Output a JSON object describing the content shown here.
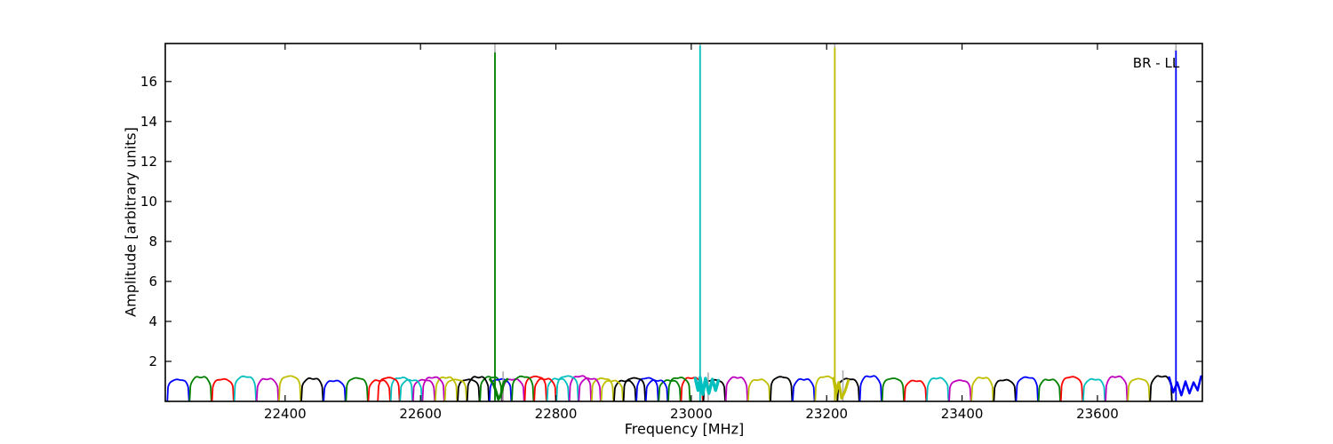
{
  "annotation": {
    "label": "BR - LL"
  },
  "axes": {
    "xlabel": "Frequency [MHz]",
    "ylabel": "Amplitude [arbitrary units]"
  },
  "chart_data": {
    "type": "line",
    "title": "",
    "annotation": "BR - LL",
    "xlabel": "Frequency [MHz]",
    "ylabel": "Amplitude [arbitrary units]",
    "xlim": [
      22223,
      23755
    ],
    "ylim": [
      0,
      17.9
    ],
    "xticks": [
      22400,
      22600,
      22800,
      23000,
      23200,
      23400,
      23600
    ],
    "yticks": [
      2,
      4,
      6,
      8,
      10,
      12,
      14,
      16
    ],
    "grid": false,
    "legend": "none",
    "background": "#ffffff",
    "color_cycle": {
      "b": "#0000ff",
      "g": "#008000",
      "r": "#ff0000",
      "c": "#00bfbf",
      "m": "#bf00bf",
      "y": "#bfbf00",
      "k": "#000000",
      "gray": "#a9a9a9"
    },
    "bandpass_amplitude_range": [
      1.08,
      1.34
    ],
    "subbands_main": {
      "f_start": 22226,
      "pitch_mhz": 33,
      "width_mhz": 32,
      "count": 46,
      "amp_seed": 3,
      "skip": [
        45
      ],
      "colors": [
        "b",
        "g",
        "r",
        "c",
        "m",
        "y",
        "k",
        "b",
        "g",
        "r",
        "c",
        "m",
        "y",
        "k",
        "g",
        "m",
        "r",
        "c",
        "m",
        "y",
        "k",
        "b",
        "g",
        "r",
        "k",
        "m",
        "y",
        "k",
        "b",
        "y",
        "k",
        "b",
        "g",
        "r",
        "c",
        "m",
        "y",
        "k",
        "b",
        "g",
        "r",
        "c",
        "m",
        "y",
        "k",
        "b"
      ]
    },
    "subbands_overlap": {
      "f_start": 22537,
      "pitch_mhz": 33,
      "width_mhz": 32,
      "count": 14,
      "amp_seed": 8,
      "skip": [],
      "colors": [
        "r",
        "c",
        "m",
        "y",
        "k",
        "b",
        "g",
        "r",
        "c",
        "m",
        "y",
        "k",
        "b",
        "g"
      ]
    },
    "spikes": [
      {
        "f": 22710,
        "color": "g",
        "top": 17.45
      },
      {
        "f": 23013,
        "color": "c",
        "top": 17.8
      },
      {
        "f": 23212,
        "color": "y",
        "top": 17.7
      },
      {
        "f": 23716,
        "color": "b",
        "top": 17.55
      }
    ],
    "gray_full_lines": [
      {
        "f": 22710,
        "a0": 0,
        "a1": 17.9
      },
      {
        "f": 23013,
        "a0": 0,
        "a1": 17.9
      },
      {
        "f": 23212,
        "a0": 0,
        "a1": 17.9
      },
      {
        "f": 23716,
        "a0": 0,
        "a1": 17.9
      }
    ],
    "gray_short_lines": [
      {
        "f": 22722,
        "a0": 0,
        "a1": 1.5
      },
      {
        "f": 23025,
        "a0": 0,
        "a1": 1.45
      },
      {
        "f": 23224,
        "a0": 0,
        "a1": 1.55
      }
    ],
    "ripple_segments": [
      {
        "color": "g",
        "width": 3,
        "points": [
          [
            22703,
            1.1
          ],
          [
            22708,
            0.85
          ],
          [
            22712,
            0.45
          ],
          [
            22715,
            0.1
          ],
          [
            22719,
            0.35
          ],
          [
            22723,
            0.95
          ],
          [
            22728,
            1.1
          ]
        ]
      },
      {
        "color": "c",
        "width": 3.5,
        "points": [
          [
            23006,
            1.15
          ],
          [
            23010,
            0.55
          ],
          [
            23013,
            1.2
          ],
          [
            23017,
            0.35
          ],
          [
            23021,
            1.15
          ],
          [
            23026,
            0.4
          ],
          [
            23031,
            1.1
          ],
          [
            23036,
            0.55
          ],
          [
            23040,
            1.05
          ]
        ]
      },
      {
        "color": "y",
        "width": 3,
        "points": [
          [
            23210,
            1.15
          ],
          [
            23214,
            0.4
          ],
          [
            23218,
            0.95
          ],
          [
            23222,
            0.15
          ],
          [
            23227,
            0.5
          ],
          [
            23232,
            1.05
          ]
        ]
      },
      {
        "color": "b",
        "width": 2.5,
        "points": [
          [
            23706,
            1.2
          ],
          [
            23712,
            0.45
          ],
          [
            23718,
            0.95
          ],
          [
            23724,
            0.3
          ],
          [
            23730,
            1.0
          ],
          [
            23736,
            0.4
          ],
          [
            23742,
            0.95
          ],
          [
            23748,
            0.55
          ],
          [
            23753,
            1.25
          ]
        ]
      }
    ]
  }
}
